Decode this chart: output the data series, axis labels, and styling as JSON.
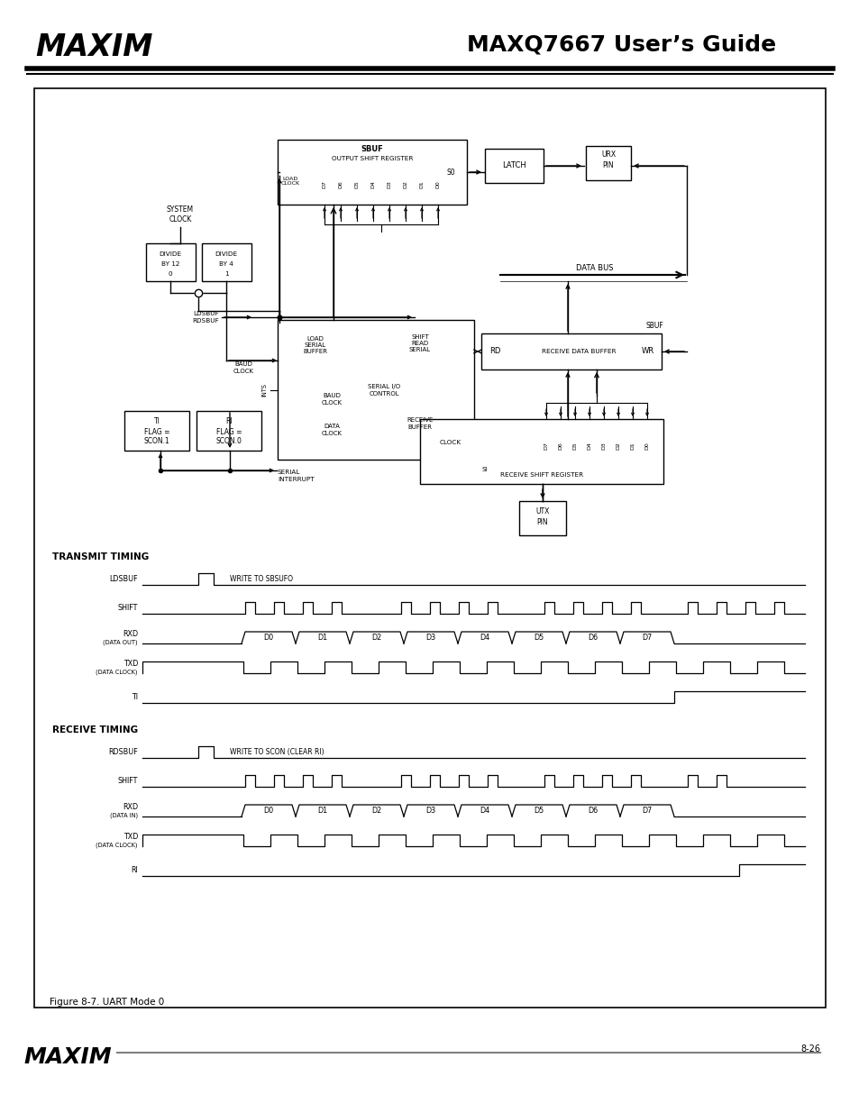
{
  "title": "MAXQ7667 User’s Guide",
  "page_num": "8-26",
  "figure_caption": "Figure 8-7. UART Mode 0",
  "bg_color": "#ffffff"
}
